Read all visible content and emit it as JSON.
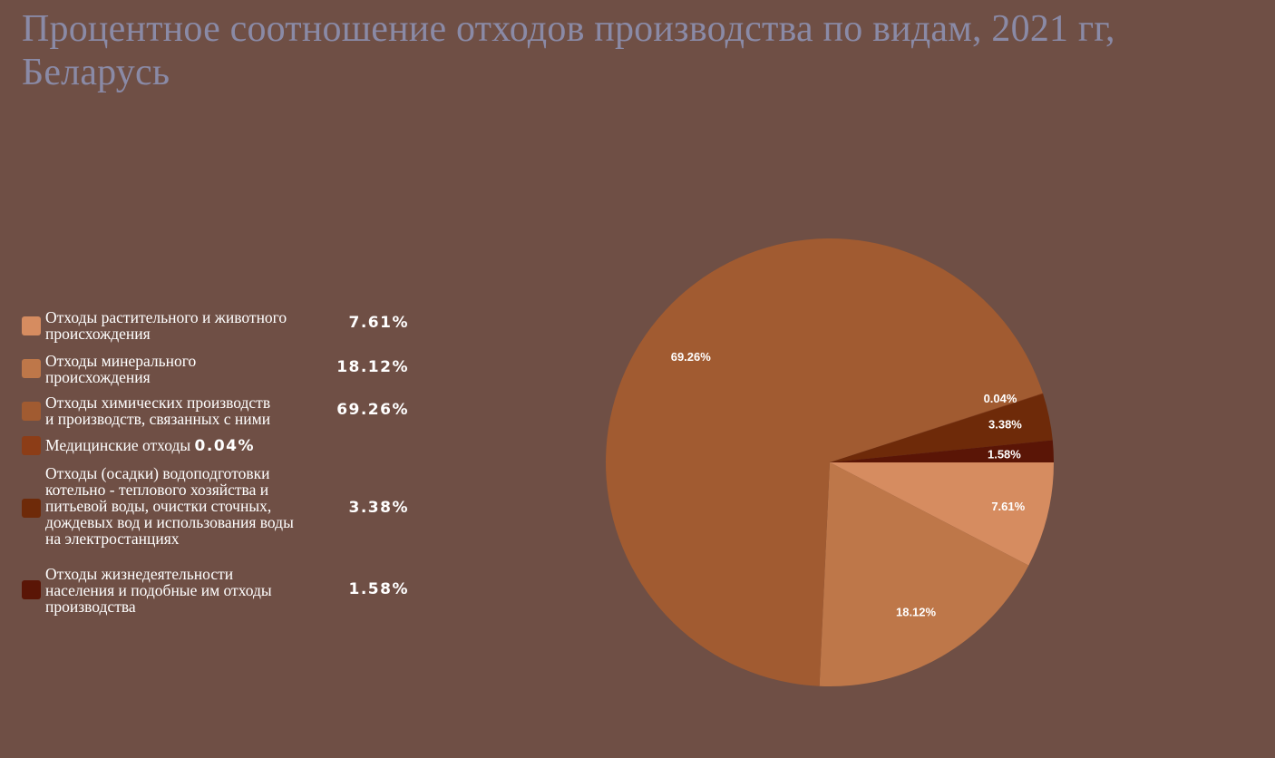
{
  "chart_data": {
    "type": "pie",
    "title": "Процентное соотношение отходов производства по видам, 2021 гг, Беларусь",
    "legend_position": "left",
    "slices": [
      {
        "label": "Отходы растительного и животного происхождения",
        "value": 7.61,
        "display": "7.61%",
        "color": "#d68c60"
      },
      {
        "label": "Отходы минерального происхождения",
        "value": 18.12,
        "display": "18.12%",
        "color": "#be7749"
      },
      {
        "label": "Отходы химических производств и производств, связанных с ними",
        "value": 69.26,
        "display": "69.26%",
        "color": "#a15b31"
      },
      {
        "label": "Медицинские отходы",
        "value": 0.04,
        "display": "0.04%",
        "color": "#8c3d17"
      },
      {
        "label": "Отходы (осадки) водоподготовки котельно - теплового хозяйства и питьевой воды, очистки сточных, дождевых вод и использования воды на электростанциях",
        "value": 3.38,
        "display": "3.38%",
        "color": "#6e2a09"
      },
      {
        "label": "Отходы жизнедеятельности населения и подобные им отходы производства",
        "value": 1.58,
        "display": "1.58%",
        "color": "#5a1506"
      }
    ]
  },
  "legend": {
    "items": [
      {
        "lines": [
          "Отходы растительного и животного",
          "происхождения"
        ],
        "pct": "7.61%"
      },
      {
        "lines": [
          "Отходы минерального",
          "происхождения"
        ],
        "pct": "18.12%"
      },
      {
        "lines": [
          "Отходы химических производств",
          "и производств, связанных с ними"
        ],
        "pct": "69.26%"
      },
      {
        "lines": [
          "Медицинские отходы"
        ],
        "pct": "0.04%"
      },
      {
        "lines": [
          "Отходы (осадки) водоподготовки",
          "котельно - теплового хозяйства и",
          "питьевой воды, очистки сточных,",
          "дождевых вод и использования воды",
          "на электростанциях"
        ],
        "pct": "3.38%"
      },
      {
        "lines": [
          "Отходы жизнедеятельности",
          "населения и подобные им отходы",
          "производства"
        ],
        "pct": "1.58%"
      }
    ]
  }
}
